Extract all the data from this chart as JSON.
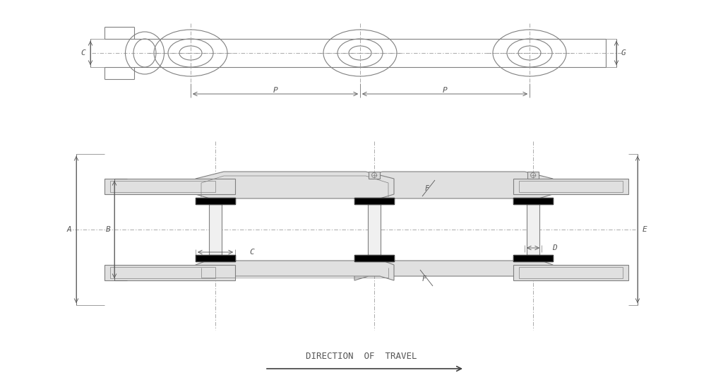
{
  "bg_color": "#ffffff",
  "line_color": "#808080",
  "dark_line_color": "#404040",
  "black_color": "#000000",
  "centerline_color": "#888888",
  "text_color": "#555555",
  "fig_width": 10.24,
  "fig_height": 5.55,
  "title_text": "DIRECTION  OF  TRAVEL",
  "labels": {
    "C_top": "C",
    "G_top": "G",
    "P_left": "P",
    "P_right": "P",
    "A": "A",
    "B": "B",
    "C_side": "C",
    "D": "D",
    "E": "E",
    "F_top": "F",
    "F_bot": "F"
  }
}
